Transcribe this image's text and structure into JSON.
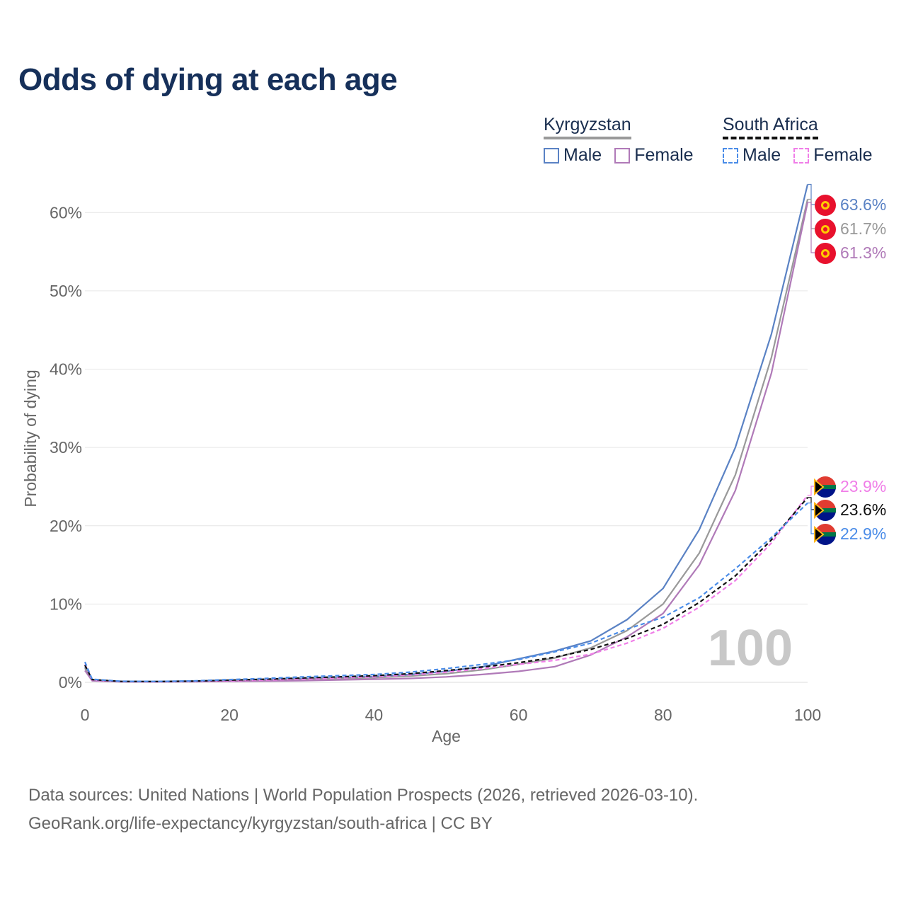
{
  "title": "Odds of dying at each age",
  "legend": {
    "kyrgyzstan": {
      "name": "Kyrgyzstan",
      "male": "Male",
      "female": "Female"
    },
    "south_africa": {
      "name": "South Africa",
      "male": "Male",
      "female": "Female"
    }
  },
  "footer": {
    "line1": "Data sources: United Nations | World Population Prospects (2026, retrieved 2026-03-10).",
    "line2": "GeoRank.org/life-expectancy/kyrgyzstan/south-africa | CC BY"
  },
  "colors": {
    "kg_male": "#5a82c4",
    "kg_female": "#b07ab8",
    "kg_total": "#999999",
    "za_male": "#4a8ce8",
    "za_female": "#f07ee8",
    "za_total": "#111111",
    "grid": "#e6e6e6",
    "axis_text": "#666666"
  },
  "chart_data": {
    "type": "line",
    "xlabel": "Age",
    "ylabel": "Probability of dying",
    "xlim": [
      0,
      100
    ],
    "ylim": [
      0,
      65
    ],
    "xticks": [
      0,
      20,
      40,
      60,
      80,
      100
    ],
    "xtick_labels": [
      "0",
      "20",
      "40",
      "60",
      "80",
      "100"
    ],
    "yticks": [
      0,
      10,
      20,
      30,
      40,
      50,
      60
    ],
    "ytick_labels": [
      "0%",
      "10%",
      "20%",
      "30%",
      "40%",
      "50%",
      "60%"
    ],
    "watermark": "100",
    "x": [
      0,
      1,
      5,
      10,
      15,
      20,
      25,
      30,
      35,
      40,
      45,
      50,
      55,
      60,
      65,
      70,
      75,
      80,
      85,
      90,
      95,
      100
    ],
    "series": [
      {
        "key": "kg_male",
        "name": "Kyrgyzstan Male",
        "style": "solid",
        "values": [
          2.0,
          0.3,
          0.1,
          0.1,
          0.15,
          0.25,
          0.35,
          0.45,
          0.6,
          0.75,
          1.0,
          1.4,
          2.0,
          3.0,
          4.0,
          5.3,
          8.0,
          12.0,
          19.5,
          30.0,
          44.5,
          63.6
        ],
        "end_label": "63.6%"
      },
      {
        "key": "kg_total",
        "name": "Kyrgyzstan",
        "style": "solid",
        "values": [
          1.8,
          0.25,
          0.08,
          0.08,
          0.12,
          0.2,
          0.28,
          0.36,
          0.48,
          0.6,
          0.8,
          1.1,
          1.6,
          2.3,
          3.1,
          4.4,
          6.6,
          10.0,
          16.5,
          26.5,
          41.5,
          61.7
        ],
        "end_label": "61.7%"
      },
      {
        "key": "kg_female",
        "name": "Kyrgyzstan Female",
        "style": "solid",
        "values": [
          1.5,
          0.2,
          0.06,
          0.05,
          0.08,
          0.12,
          0.16,
          0.22,
          0.3,
          0.4,
          0.5,
          0.7,
          1.0,
          1.4,
          2.0,
          3.5,
          5.8,
          8.8,
          15.0,
          24.5,
          39.5,
          61.3
        ],
        "end_label": "61.3%"
      },
      {
        "key": "za_female",
        "name": "South Africa Female",
        "style": "dashed",
        "values": [
          2.3,
          0.3,
          0.1,
          0.08,
          0.12,
          0.2,
          0.3,
          0.4,
          0.55,
          0.7,
          0.95,
          1.3,
          1.75,
          2.3,
          2.8,
          3.6,
          5.0,
          6.9,
          9.6,
          13.0,
          17.8,
          23.9
        ],
        "end_label": "23.9%"
      },
      {
        "key": "za_total",
        "name": "South Africa",
        "style": "dashed",
        "values": [
          2.2,
          0.35,
          0.12,
          0.1,
          0.15,
          0.28,
          0.4,
          0.55,
          0.7,
          0.85,
          1.1,
          1.5,
          1.95,
          2.5,
          3.2,
          4.2,
          5.6,
          7.4,
          10.2,
          13.6,
          18.2,
          23.6
        ],
        "end_label": "23.6%"
      },
      {
        "key": "za_male",
        "name": "South Africa Male",
        "style": "dashed",
        "values": [
          2.6,
          0.4,
          0.14,
          0.12,
          0.18,
          0.35,
          0.5,
          0.7,
          0.85,
          1.0,
          1.3,
          1.75,
          2.3,
          2.9,
          3.9,
          5.0,
          6.8,
          8.3,
          10.8,
          14.5,
          18.5,
          22.9
        ],
        "end_label": "22.9%"
      }
    ]
  }
}
